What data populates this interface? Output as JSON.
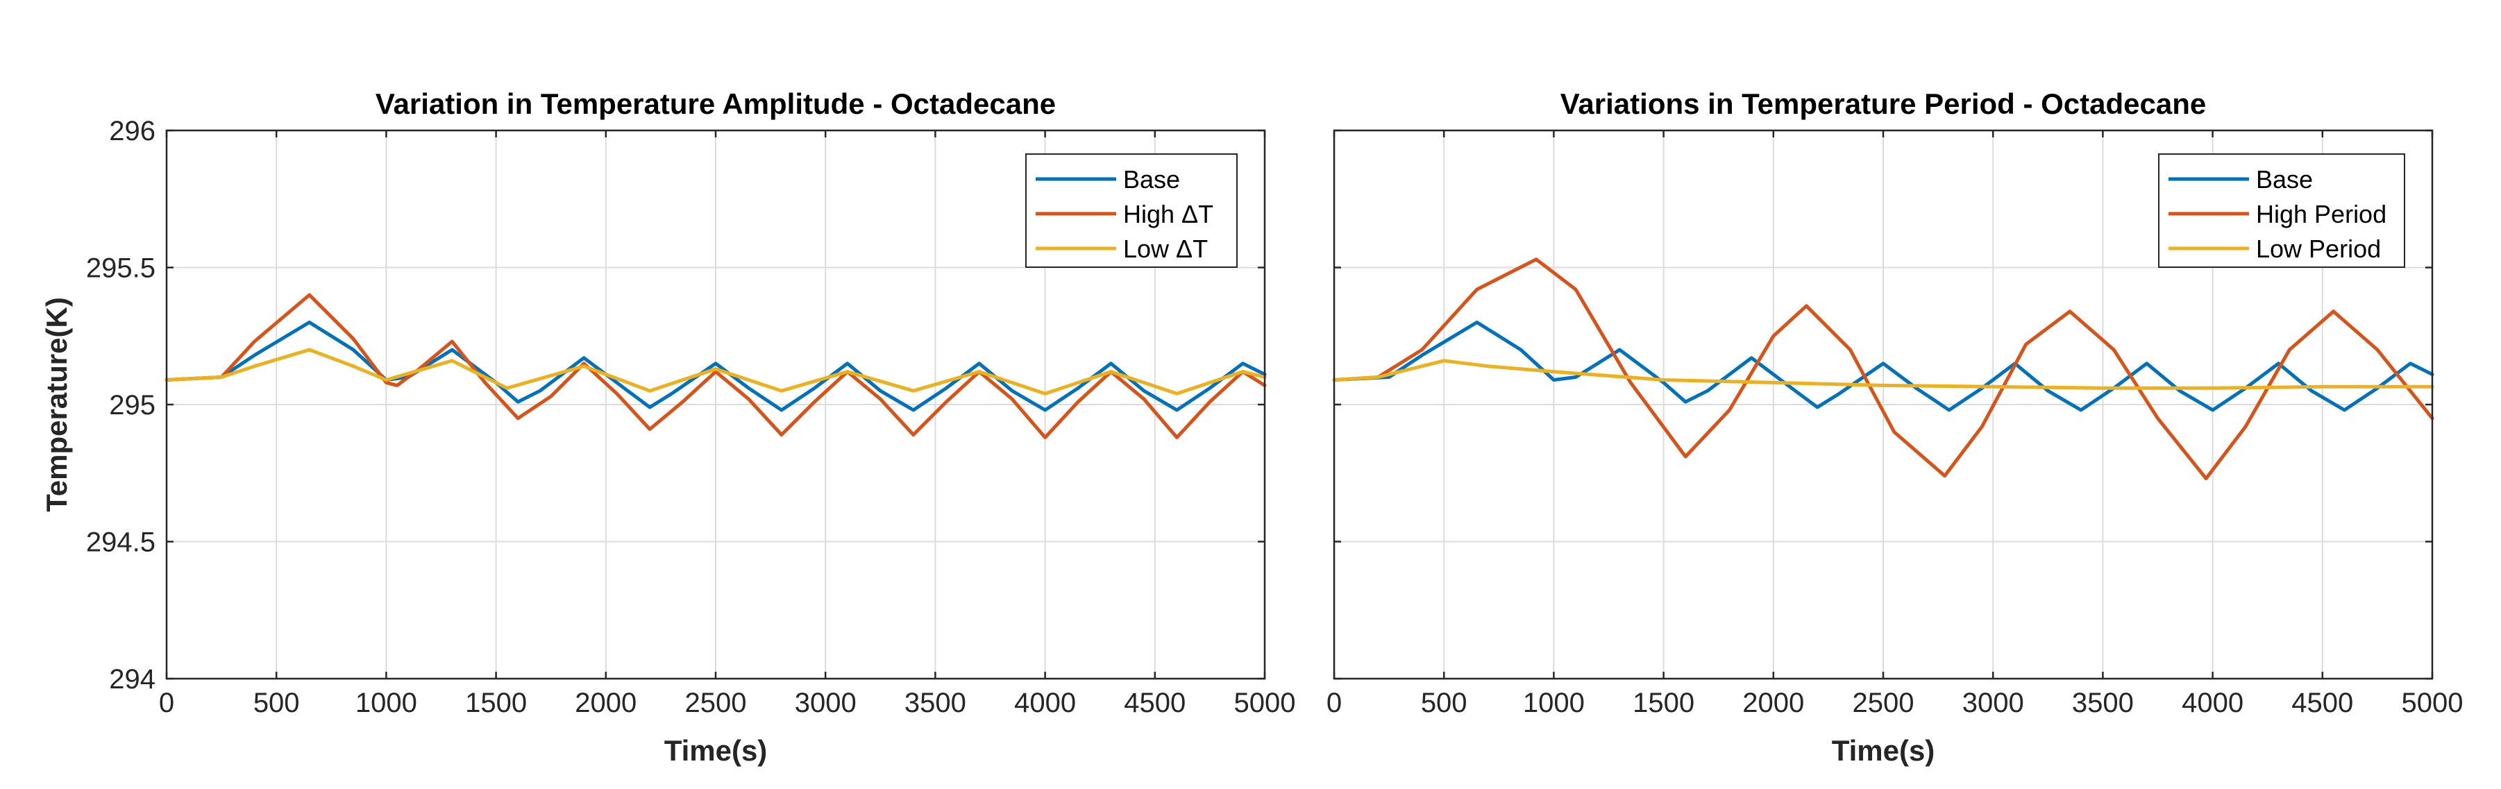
{
  "colors": {
    "base": "#0072BD",
    "high": "#D95319",
    "low": "#EDB120"
  },
  "chart_data": [
    {
      "type": "line",
      "title": "Variation in Temperature Amplitude - Octadecane",
      "xlabel": "Time(s)",
      "ylabel": "Temperature(K)",
      "xlim": [
        0,
        5000
      ],
      "ylim": [
        294,
        296
      ],
      "xticks": [
        "0",
        "500",
        "1000",
        "1500",
        "2000",
        "2500",
        "3000",
        "3500",
        "4000",
        "4500",
        "5000"
      ],
      "yticks": [
        "294",
        "294.5",
        "295",
        "295.5",
        "296"
      ],
      "grid": true,
      "legend_position": "top-right",
      "series": [
        {
          "name": "Base",
          "color": "#0072BD",
          "points": [
            [
              0,
              295.09
            ],
            [
              250,
              295.1
            ],
            [
              400,
              295.18
            ],
            [
              650,
              295.3
            ],
            [
              850,
              295.2
            ],
            [
              1000,
              295.09
            ],
            [
              1100,
              295.1
            ],
            [
              1300,
              295.2
            ],
            [
              1500,
              295.08
            ],
            [
              1600,
              295.01
            ],
            [
              1700,
              295.05
            ],
            [
              1900,
              295.17
            ],
            [
              2100,
              295.05
            ],
            [
              2200,
              294.99
            ],
            [
              2300,
              295.04
            ],
            [
              2500,
              295.15
            ],
            [
              2650,
              295.06
            ],
            [
              2800,
              294.98
            ],
            [
              2950,
              295.06
            ],
            [
              3100,
              295.15
            ],
            [
              3250,
              295.05
            ],
            [
              3400,
              294.98
            ],
            [
              3550,
              295.06
            ],
            [
              3700,
              295.15
            ],
            [
              3850,
              295.05
            ],
            [
              4000,
              294.98
            ],
            [
              4150,
              295.06
            ],
            [
              4300,
              295.15
            ],
            [
              4450,
              295.05
            ],
            [
              4600,
              294.98
            ],
            [
              4750,
              295.06
            ],
            [
              4900,
              295.15
            ],
            [
              5000,
              295.11
            ]
          ]
        },
        {
          "name": "High ΔT",
          "color": "#D95319",
          "points": [
            [
              0,
              295.09
            ],
            [
              250,
              295.1
            ],
            [
              400,
              295.23
            ],
            [
              650,
              295.4
            ],
            [
              850,
              295.24
            ],
            [
              1000,
              295.08
            ],
            [
              1050,
              295.07
            ],
            [
              1150,
              295.13
            ],
            [
              1300,
              295.23
            ],
            [
              1450,
              295.08
            ],
            [
              1600,
              294.95
            ],
            [
              1750,
              295.03
            ],
            [
              1900,
              295.15
            ],
            [
              2050,
              295.04
            ],
            [
              2200,
              294.91
            ],
            [
              2350,
              295.01
            ],
            [
              2500,
              295.12
            ],
            [
              2650,
              295.02
            ],
            [
              2800,
              294.89
            ],
            [
              2950,
              295.01
            ],
            [
              3100,
              295.12
            ],
            [
              3250,
              295.02
            ],
            [
              3400,
              294.89
            ],
            [
              3550,
              295.01
            ],
            [
              3700,
              295.12
            ],
            [
              3850,
              295.02
            ],
            [
              4000,
              294.88
            ],
            [
              4150,
              295.01
            ],
            [
              4300,
              295.12
            ],
            [
              4450,
              295.02
            ],
            [
              4600,
              294.88
            ],
            [
              4750,
              295.01
            ],
            [
              4900,
              295.12
            ],
            [
              5000,
              295.07
            ]
          ]
        },
        {
          "name": "Low ΔT",
          "color": "#EDB120",
          "points": [
            [
              0,
              295.09
            ],
            [
              250,
              295.1
            ],
            [
              400,
              295.14
            ],
            [
              650,
              295.2
            ],
            [
              850,
              295.14
            ],
            [
              1000,
              295.09
            ],
            [
              1300,
              295.16
            ],
            [
              1550,
              295.06
            ],
            [
              1900,
              295.14
            ],
            [
              2200,
              295.05
            ],
            [
              2500,
              295.13
            ],
            [
              2800,
              295.05
            ],
            [
              3100,
              295.12
            ],
            [
              3400,
              295.05
            ],
            [
              3700,
              295.12
            ],
            [
              4000,
              295.04
            ],
            [
              4300,
              295.12
            ],
            [
              4600,
              295.04
            ],
            [
              4900,
              295.12
            ],
            [
              5000,
              295.1
            ]
          ]
        }
      ]
    },
    {
      "type": "line",
      "title": "Variations in Temperature Period - Octadecane",
      "xlabel": "Time(s)",
      "ylabel": "",
      "xlim": [
        0,
        5000
      ],
      "ylim": [
        294,
        296
      ],
      "xticks": [
        "0",
        "500",
        "1000",
        "1500",
        "2000",
        "2500",
        "3000",
        "3500",
        "4000",
        "4500",
        "5000"
      ],
      "yticks": [],
      "grid": true,
      "legend_position": "top-right",
      "series": [
        {
          "name": "Base",
          "color": "#0072BD",
          "points": [
            [
              0,
              295.09
            ],
            [
              250,
              295.1
            ],
            [
              400,
              295.18
            ],
            [
              650,
              295.3
            ],
            [
              850,
              295.2
            ],
            [
              1000,
              295.09
            ],
            [
              1100,
              295.1
            ],
            [
              1300,
              295.2
            ],
            [
              1500,
              295.08
            ],
            [
              1600,
              295.01
            ],
            [
              1700,
              295.05
            ],
            [
              1900,
              295.17
            ],
            [
              2100,
              295.05
            ],
            [
              2200,
              294.99
            ],
            [
              2300,
              295.04
            ],
            [
              2500,
              295.15
            ],
            [
              2650,
              295.06
            ],
            [
              2800,
              294.98
            ],
            [
              2950,
              295.06
            ],
            [
              3100,
              295.15
            ],
            [
              3250,
              295.05
            ],
            [
              3400,
              294.98
            ],
            [
              3550,
              295.06
            ],
            [
              3700,
              295.15
            ],
            [
              3850,
              295.05
            ],
            [
              4000,
              294.98
            ],
            [
              4150,
              295.06
            ],
            [
              4300,
              295.15
            ],
            [
              4450,
              295.05
            ],
            [
              4600,
              294.98
            ],
            [
              4750,
              295.06
            ],
            [
              4900,
              295.15
            ],
            [
              5000,
              295.11
            ]
          ]
        },
        {
          "name": "High Period",
          "color": "#D95319",
          "points": [
            [
              0,
              295.09
            ],
            [
              200,
              295.1
            ],
            [
              400,
              295.2
            ],
            [
              650,
              295.42
            ],
            [
              920,
              295.53
            ],
            [
              1100,
              295.42
            ],
            [
              1350,
              295.08
            ],
            [
              1600,
              294.81
            ],
            [
              1800,
              294.98
            ],
            [
              2000,
              295.25
            ],
            [
              2150,
              295.36
            ],
            [
              2350,
              295.2
            ],
            [
              2550,
              294.9
            ],
            [
              2780,
              294.74
            ],
            [
              2950,
              294.92
            ],
            [
              3150,
              295.22
            ],
            [
              3350,
              295.34
            ],
            [
              3550,
              295.2
            ],
            [
              3750,
              294.95
            ],
            [
              3970,
              294.73
            ],
            [
              4150,
              294.92
            ],
            [
              4350,
              295.2
            ],
            [
              4550,
              295.34
            ],
            [
              4750,
              295.2
            ],
            [
              5000,
              294.95
            ]
          ]
        },
        {
          "name": "Low Period",
          "color": "#EDB120",
          "points": [
            [
              0,
              295.09
            ],
            [
              200,
              295.1
            ],
            [
              400,
              295.14
            ],
            [
              500,
              295.16
            ],
            [
              700,
              295.14
            ],
            [
              1000,
              295.12
            ],
            [
              1500,
              295.09
            ],
            [
              2000,
              295.08
            ],
            [
              2500,
              295.07
            ],
            [
              3000,
              295.065
            ],
            [
              3500,
              295.06
            ],
            [
              4000,
              295.06
            ],
            [
              4500,
              295.065
            ],
            [
              5000,
              295.065
            ]
          ]
        }
      ]
    }
  ]
}
